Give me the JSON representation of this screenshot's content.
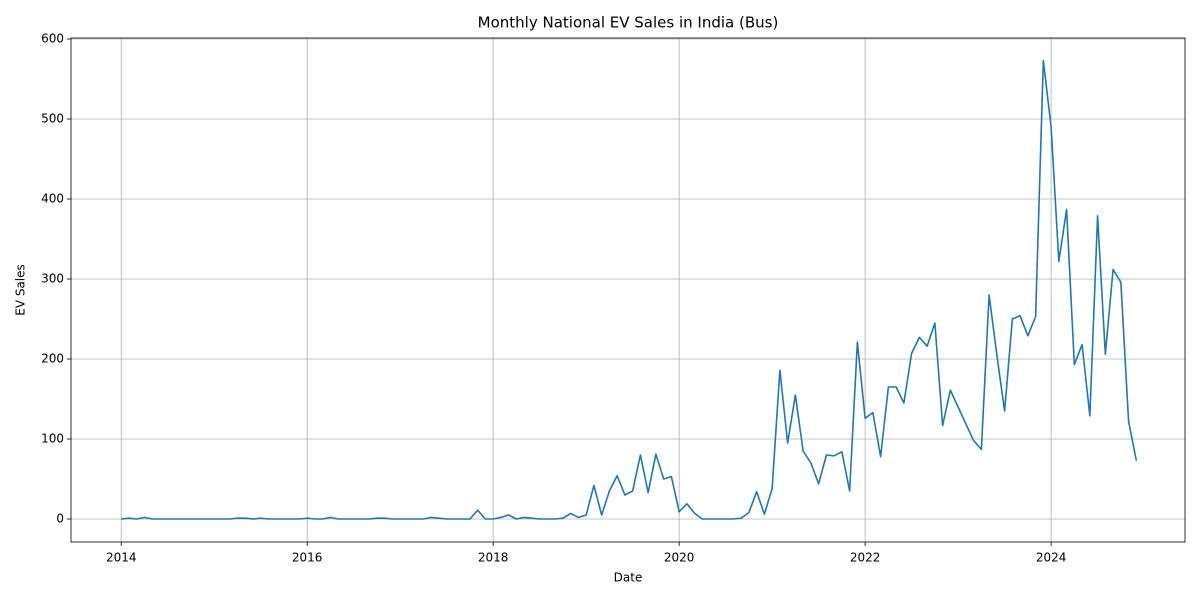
{
  "chart_data": {
    "type": "line",
    "title": "Monthly National EV Sales in India (Bus)",
    "xlabel": "Date",
    "ylabel": "EV Sales",
    "x": [
      "2014-01",
      "2014-02",
      "2014-03",
      "2014-04",
      "2014-05",
      "2014-06",
      "2014-07",
      "2014-08",
      "2014-09",
      "2014-10",
      "2014-11",
      "2014-12",
      "2015-01",
      "2015-02",
      "2015-03",
      "2015-04",
      "2015-05",
      "2015-06",
      "2015-07",
      "2015-08",
      "2015-09",
      "2015-10",
      "2015-11",
      "2015-12",
      "2016-01",
      "2016-02",
      "2016-03",
      "2016-04",
      "2016-05",
      "2016-06",
      "2016-07",
      "2016-08",
      "2016-09",
      "2016-10",
      "2016-11",
      "2016-12",
      "2017-01",
      "2017-02",
      "2017-03",
      "2017-04",
      "2017-05",
      "2017-06",
      "2017-07",
      "2017-08",
      "2017-09",
      "2017-10",
      "2017-11",
      "2017-12",
      "2018-01",
      "2018-02",
      "2018-03",
      "2018-04",
      "2018-05",
      "2018-06",
      "2018-07",
      "2018-08",
      "2018-09",
      "2018-10",
      "2018-11",
      "2018-12",
      "2019-01",
      "2019-02",
      "2019-03",
      "2019-04",
      "2019-05",
      "2019-06",
      "2019-07",
      "2019-08",
      "2019-09",
      "2019-10",
      "2019-11",
      "2019-12",
      "2020-01",
      "2020-02",
      "2020-03",
      "2020-04",
      "2020-05",
      "2020-06",
      "2020-07",
      "2020-08",
      "2020-09",
      "2020-10",
      "2020-11",
      "2020-12",
      "2021-01",
      "2021-02",
      "2021-03",
      "2021-04",
      "2021-05",
      "2021-06",
      "2021-07",
      "2021-08",
      "2021-09",
      "2021-10",
      "2021-11",
      "2021-12",
      "2022-01",
      "2022-02",
      "2022-03",
      "2022-04",
      "2022-05",
      "2022-06",
      "2022-07",
      "2022-08",
      "2022-09",
      "2022-10",
      "2022-11",
      "2022-12",
      "2023-01",
      "2023-02",
      "2023-03",
      "2023-04",
      "2023-05",
      "2023-06",
      "2023-07",
      "2023-08",
      "2023-09",
      "2023-10",
      "2023-11",
      "2023-12",
      "2024-01",
      "2024-02",
      "2024-03",
      "2024-04",
      "2024-05",
      "2024-06",
      "2024-07",
      "2024-08",
      "2024-09",
      "2024-10",
      "2024-11",
      "2024-12"
    ],
    "series": [
      {
        "name": "Bus",
        "color": "#1f77b4",
        "values": [
          0,
          1,
          0,
          2,
          0,
          0,
          0,
          0,
          0,
          0,
          0,
          0,
          0,
          0,
          0,
          1,
          1,
          0,
          1,
          0,
          0,
          0,
          0,
          0,
          1,
          0,
          0,
          2,
          0,
          0,
          0,
          0,
          0,
          1,
          1,
          0,
          0,
          0,
          0,
          0,
          2,
          1,
          0,
          0,
          0,
          0,
          11,
          0,
          0,
          2,
          5,
          0,
          2,
          1,
          0,
          0,
          0,
          1,
          7,
          2,
          5,
          42,
          5,
          35,
          54,
          30,
          35,
          80,
          33,
          81,
          50,
          53,
          9,
          19,
          7,
          0,
          0,
          0,
          0,
          0,
          1,
          8,
          34,
          6,
          38,
          186,
          95,
          155,
          85,
          70,
          44,
          80,
          79,
          84,
          35,
          221,
          126,
          133,
          78,
          165,
          165,
          145,
          207,
          227,
          216,
          245,
          117,
          161,
          140,
          119,
          98,
          87,
          280,
          205,
          135,
          250,
          254,
          229,
          253,
          573,
          490,
          322,
          387,
          193,
          218,
          129,
          379,
          206,
          312,
          296,
          122,
          73
        ]
      }
    ],
    "xlim": [
      2013.46,
      2025.44
    ],
    "xticks": [
      2014,
      2016,
      2018,
      2020,
      2022,
      2024
    ],
    "ylim": [
      -28.75,
      601.25
    ],
    "yticks": [
      0,
      100,
      200,
      300,
      400,
      500,
      600
    ],
    "grid": true
  }
}
